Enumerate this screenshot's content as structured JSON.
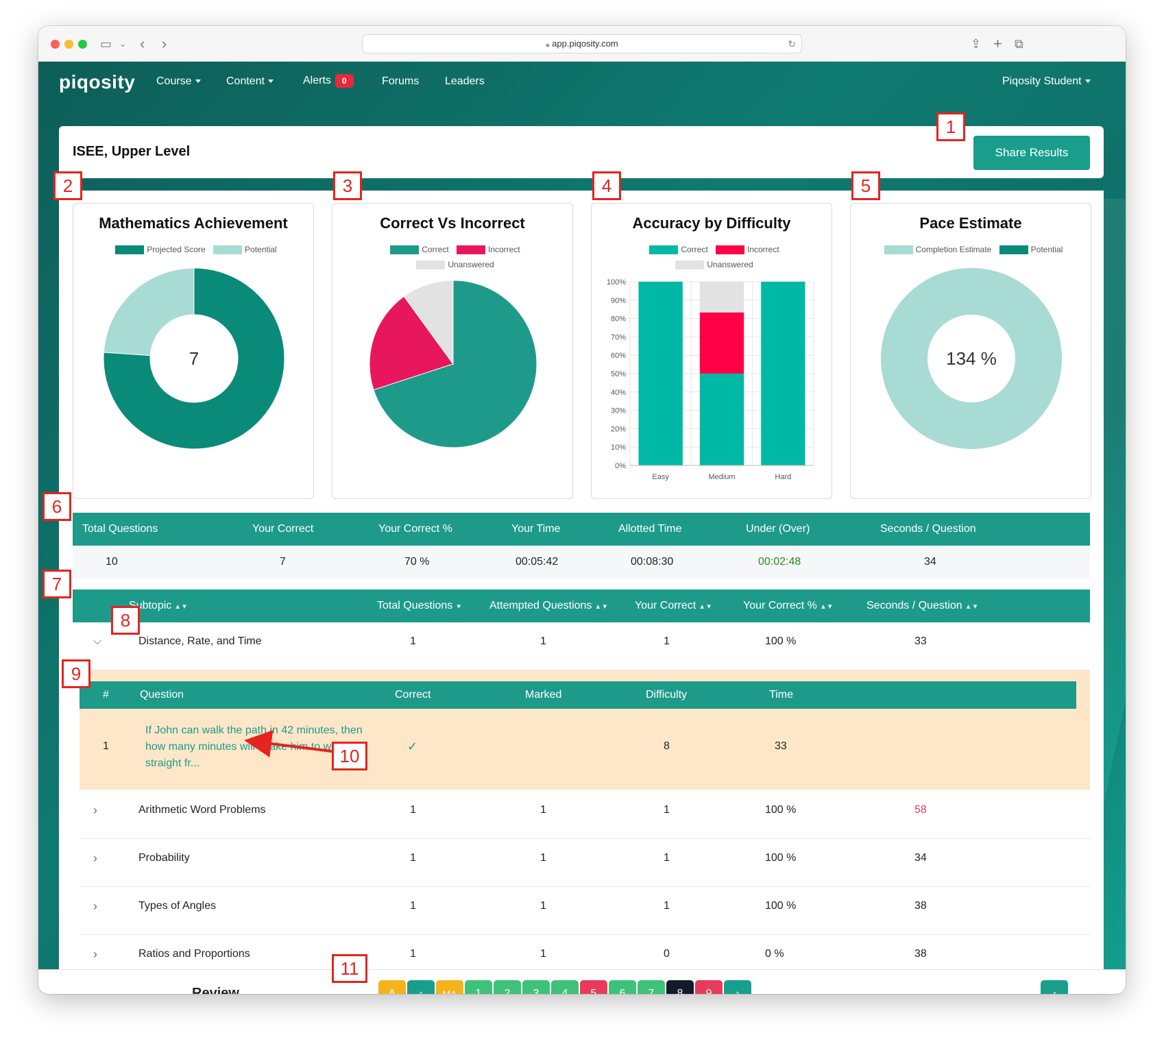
{
  "browser": {
    "url": "app.piqosity.com"
  },
  "nav": {
    "logo": "piqosity",
    "items": [
      "Course",
      "Content",
      "Alerts",
      "Forums",
      "Leaders"
    ],
    "alerts_count": "0",
    "user": "Piqosity Student"
  },
  "header": {
    "title": "ISEE, Upper Level",
    "share_label": "Share Results"
  },
  "charts": {
    "math": {
      "title": "Mathematics Achievement",
      "legend": [
        "Projected Score",
        "Potential"
      ],
      "center_value": "7"
    },
    "correct": {
      "title": "Correct Vs Incorrect",
      "legend": [
        "Correct",
        "Incorrect",
        "Unanswered"
      ]
    },
    "difficulty": {
      "title": "Accuracy by Difficulty",
      "legend": [
        "Correct",
        "Incorrect",
        "Unanswered"
      ],
      "y_ticks": [
        "100%",
        "90%",
        "80%",
        "70%",
        "60%",
        "50%",
        "40%",
        "30%",
        "20%",
        "10%",
        "0%"
      ],
      "categories": [
        "Easy",
        "Medium",
        "Hard"
      ]
    },
    "pace": {
      "title": "Pace Estimate",
      "legend": [
        "Completion Estimate",
        "Potential"
      ],
      "center_value": "134 %"
    }
  },
  "chart_data": [
    {
      "type": "pie",
      "title": "Mathematics Achievement",
      "donut": true,
      "labels": [
        "Projected Score",
        "Potential"
      ],
      "values": [
        7,
        2.2
      ],
      "colors": [
        "#0a8a78",
        "#a8dbd4"
      ]
    },
    {
      "type": "pie",
      "title": "Correct Vs Incorrect",
      "labels": [
        "Correct",
        "Incorrect",
        "Unanswered"
      ],
      "values": [
        7,
        2,
        1
      ],
      "colors": [
        "#1d9a8a",
        "#e8175d",
        "#e2e2e2"
      ]
    },
    {
      "type": "bar",
      "stacked": true,
      "title": "Accuracy by Difficulty",
      "categories": [
        "Easy",
        "Medium",
        "Hard"
      ],
      "series": [
        {
          "name": "Correct",
          "values": [
            100,
            50,
            100
          ],
          "color": "#00b8a6"
        },
        {
          "name": "Incorrect",
          "values": [
            0,
            33.3,
            0
          ],
          "color": "#ff0046"
        },
        {
          "name": "Unanswered",
          "values": [
            0,
            16.7,
            0
          ],
          "color": "#e2e2e2"
        }
      ],
      "ylim": [
        0,
        100
      ],
      "grid": true
    },
    {
      "type": "pie",
      "title": "Pace Estimate",
      "donut": true,
      "labels": [
        "Completion Estimate",
        "Potential"
      ],
      "values": [
        100,
        0
      ],
      "colors": [
        "#a8dbd4",
        "#0a8a78"
      ]
    }
  ],
  "stats": {
    "headers": [
      "Total Questions",
      "Your Correct",
      "Your Correct %",
      "Your Time",
      "Allotted Time",
      "Under (Over)",
      "Seconds / Question"
    ],
    "values": [
      "10",
      "7",
      "70 %",
      "00:05:42",
      "00:08:30",
      "00:02:48",
      "34"
    ]
  },
  "subtopics": {
    "headers": [
      "Subtopic",
      "Total Questions",
      "Attempted Questions",
      "Your Correct",
      "Your Correct %",
      "Seconds / Question"
    ],
    "rows": [
      {
        "name": "Distance, Rate, and Time",
        "total": "1",
        "attempted": "1",
        "correct": "1",
        "pct": "100 %",
        "spq": "33"
      },
      {
        "name": "Arithmetic Word Problems",
        "total": "1",
        "attempted": "1",
        "correct": "1",
        "pct": "100 %",
        "spq": "58"
      },
      {
        "name": "Probability",
        "total": "1",
        "attempted": "1",
        "correct": "1",
        "pct": "100 %",
        "spq": "34"
      },
      {
        "name": "Types of Angles",
        "total": "1",
        "attempted": "1",
        "correct": "1",
        "pct": "100 %",
        "spq": "38"
      },
      {
        "name": "Ratios and Proportions",
        "total": "1",
        "attempted": "1",
        "correct": "0",
        "pct": "0 %",
        "spq": "38"
      }
    ]
  },
  "question_table": {
    "headers": [
      "#",
      "Question",
      "Correct",
      "Marked",
      "Difficulty",
      "Time"
    ],
    "row": {
      "num": "1",
      "question": "If John can walk the path  in 42 minutes, then how many minutes will it take him to walk straight fr...",
      "correct_mark": "✓",
      "difficulty": "8",
      "time": "33"
    }
  },
  "review": {
    "label": "Review Question",
    "buttons": [
      {
        "label": "A",
        "color": "#f6b21b"
      },
      {
        "label": "‹",
        "color": "#199e8c"
      },
      {
        "label": "MA",
        "color": "#f6b21b"
      },
      {
        "label": "1",
        "color": "#3ec27a"
      },
      {
        "label": "2",
        "color": "#3ec27a"
      },
      {
        "label": "3",
        "color": "#3ec27a"
      },
      {
        "label": "4",
        "color": "#3ec27a"
      },
      {
        "label": "5",
        "color": "#e83a5a"
      },
      {
        "label": "6",
        "color": "#3ec27a"
      },
      {
        "label": "7",
        "color": "#3ec27a"
      },
      {
        "label": "8",
        "color": "#141a2b"
      },
      {
        "label": "9",
        "color": "#e83a5a"
      },
      {
        "label": "›",
        "color": "#199e8c"
      }
    ],
    "back_icon": "‹"
  },
  "markers": [
    "1",
    "2",
    "3",
    "4",
    "5",
    "6",
    "7",
    "8",
    "9",
    "10",
    "11"
  ],
  "colors": {
    "accent": "#199e8c",
    "over_time": "#e83a5a",
    "under_time": "#2b8a1f"
  }
}
